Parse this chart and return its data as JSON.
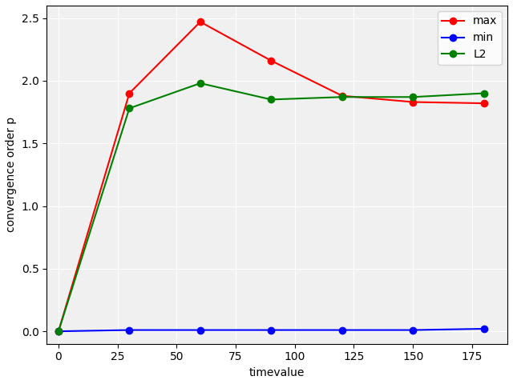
{
  "x": [
    0,
    30,
    60,
    90,
    120,
    150,
    180
  ],
  "max": [
    0.0,
    1.9,
    2.47,
    2.16,
    1.88,
    1.83,
    1.82
  ],
  "min": [
    0.0,
    0.01,
    0.01,
    0.01,
    0.01,
    0.01,
    0.02
  ],
  "L2": [
    0.0,
    1.78,
    1.98,
    1.85,
    1.87,
    1.87,
    1.9
  ],
  "xlabel": "timevalue",
  "ylabel": "convergence order p",
  "xlim": [
    -5,
    190
  ],
  "ylim": [
    -0.1,
    2.6
  ],
  "xticks": [
    0,
    25,
    50,
    75,
    100,
    125,
    150,
    175
  ],
  "yticks": [
    0.0,
    0.5,
    1.0,
    1.5,
    2.0,
    2.5
  ],
  "max_color": "#ff0000",
  "min_color": "#0000ff",
  "L2_color": "#008000",
  "axes_facecolor": "#f0f0f0",
  "figure_facecolor": "#ffffff",
  "grid_color": "#ffffff",
  "legend_labels": [
    "max",
    "min",
    "L2"
  ],
  "marker": "o",
  "linewidth": 1.5,
  "markersize": 6
}
